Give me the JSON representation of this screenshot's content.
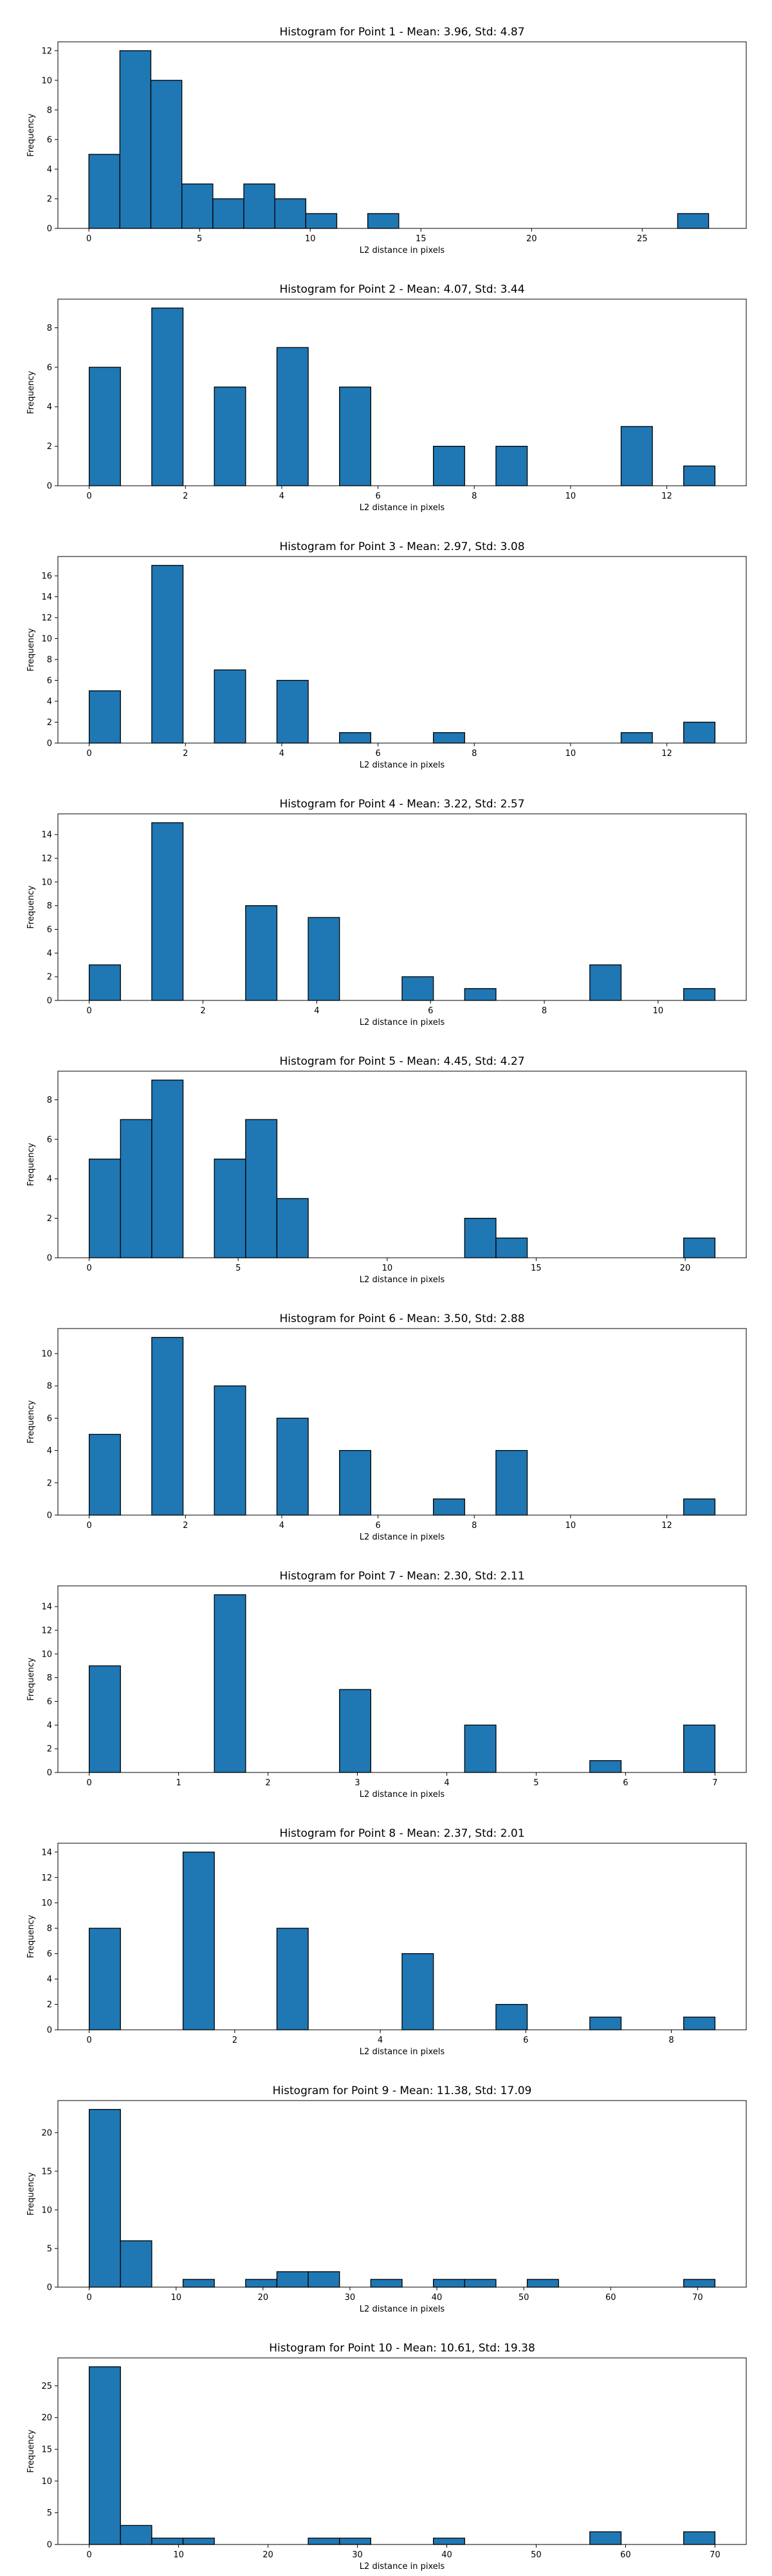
{
  "chart_data": [
    {
      "type": "bar",
      "title": "Histogram for Point 1 - Mean: 3.96, Std: 4.87",
      "xlabel": "L2 distance in pixels",
      "ylabel": "Frequency",
      "color": "#1f77b4",
      "xlim": [
        -1.4,
        29.7
      ],
      "ylim": [
        0,
        12.6
      ],
      "xticks": [
        0,
        5,
        10,
        15,
        20,
        25
      ],
      "yticks": [
        0,
        2,
        4,
        6,
        8,
        10,
        12
      ],
      "bins": [
        {
          "x0": 0,
          "x1": 1.4,
          "count": 5
        },
        {
          "x0": 1.4,
          "x1": 2.8,
          "count": 12
        },
        {
          "x0": 2.8,
          "x1": 4.2,
          "count": 10
        },
        {
          "x0": 4.2,
          "x1": 5.6,
          "count": 3
        },
        {
          "x0": 5.6,
          "x1": 7.0,
          "count": 2
        },
        {
          "x0": 7.0,
          "x1": 8.4,
          "count": 3
        },
        {
          "x0": 8.4,
          "x1": 9.8,
          "count": 2
        },
        {
          "x0": 9.8,
          "x1": 11.2,
          "count": 1
        },
        {
          "x0": 12.6,
          "x1": 14.0,
          "count": 1
        },
        {
          "x0": 26.6,
          "x1": 28.0,
          "count": 1
        }
      ]
    },
    {
      "type": "bar",
      "title": "Histogram for Point 2 - Mean: 4.07, Std: 3.44",
      "xlabel": "L2 distance in pixels",
      "ylabel": "Frequency",
      "color": "#1f77b4",
      "xlim": [
        -0.65,
        13.65
      ],
      "ylim": [
        0,
        9.45
      ],
      "xticks": [
        0,
        2,
        4,
        6,
        8,
        10,
        12
      ],
      "yticks": [
        0,
        2,
        4,
        6,
        8
      ],
      "bins": [
        {
          "x0": 0,
          "x1": 0.65,
          "count": 6
        },
        {
          "x0": 1.3,
          "x1": 1.95,
          "count": 9
        },
        {
          "x0": 2.6,
          "x1": 3.25,
          "count": 5
        },
        {
          "x0": 3.9,
          "x1": 4.55,
          "count": 7
        },
        {
          "x0": 5.2,
          "x1": 5.85,
          "count": 5
        },
        {
          "x0": 7.15,
          "x1": 7.8,
          "count": 2
        },
        {
          "x0": 8.45,
          "x1": 9.1,
          "count": 2
        },
        {
          "x0": 11.05,
          "x1": 11.7,
          "count": 3
        },
        {
          "x0": 12.35,
          "x1": 13.0,
          "count": 1
        }
      ]
    },
    {
      "type": "bar",
      "title": "Histogram for Point 3 - Mean: 2.97, Std: 3.08",
      "xlabel": "L2 distance in pixels",
      "ylabel": "Frequency",
      "color": "#1f77b4",
      "xlim": [
        -0.65,
        13.65
      ],
      "ylim": [
        0,
        17.85
      ],
      "xticks": [
        0,
        2,
        4,
        6,
        8,
        10,
        12
      ],
      "yticks": [
        0,
        2,
        4,
        6,
        8,
        10,
        12,
        14,
        16
      ],
      "bins": [
        {
          "x0": 0,
          "x1": 0.65,
          "count": 5
        },
        {
          "x0": 1.3,
          "x1": 1.95,
          "count": 17
        },
        {
          "x0": 2.6,
          "x1": 3.25,
          "count": 7
        },
        {
          "x0": 3.9,
          "x1": 4.55,
          "count": 6
        },
        {
          "x0": 5.2,
          "x1": 5.85,
          "count": 1
        },
        {
          "x0": 7.15,
          "x1": 7.8,
          "count": 1
        },
        {
          "x0": 11.05,
          "x1": 11.7,
          "count": 1
        },
        {
          "x0": 12.35,
          "x1": 13.0,
          "count": 2
        }
      ]
    },
    {
      "type": "bar",
      "title": "Histogram for Point 4 - Mean: 3.22, Std: 2.57",
      "xlabel": "L2 distance in pixels",
      "ylabel": "Frequency",
      "color": "#1f77b4",
      "xlim": [
        -0.55,
        11.55
      ],
      "ylim": [
        0,
        15.75
      ],
      "xticks": [
        0,
        2,
        4,
        6,
        8,
        10
      ],
      "yticks": [
        0,
        2,
        4,
        6,
        8,
        10,
        12,
        14
      ],
      "bins": [
        {
          "x0": 0,
          "x1": 0.55,
          "count": 3
        },
        {
          "x0": 1.1,
          "x1": 1.65,
          "count": 15
        },
        {
          "x0": 2.75,
          "x1": 3.3,
          "count": 8
        },
        {
          "x0": 3.85,
          "x1": 4.4,
          "count": 7
        },
        {
          "x0": 5.5,
          "x1": 6.05,
          "count": 2
        },
        {
          "x0": 6.6,
          "x1": 7.15,
          "count": 1
        },
        {
          "x0": 8.8,
          "x1": 9.35,
          "count": 3
        },
        {
          "x0": 10.45,
          "x1": 11.0,
          "count": 1
        }
      ]
    },
    {
      "type": "bar",
      "title": "Histogram for Point 5 - Mean: 4.45, Std: 4.27",
      "xlabel": "L2 distance in pixels",
      "ylabel": "Frequency",
      "color": "#1f77b4",
      "xlim": [
        -1.05,
        22.05
      ],
      "ylim": [
        0,
        9.45
      ],
      "xticks": [
        0,
        5,
        10,
        15,
        20
      ],
      "yticks": [
        0,
        2,
        4,
        6,
        8
      ],
      "bins": [
        {
          "x0": 0,
          "x1": 1.05,
          "count": 5
        },
        {
          "x0": 1.05,
          "x1": 2.1,
          "count": 7
        },
        {
          "x0": 2.1,
          "x1": 3.15,
          "count": 9
        },
        {
          "x0": 4.2,
          "x1": 5.25,
          "count": 5
        },
        {
          "x0": 5.25,
          "x1": 6.3,
          "count": 7
        },
        {
          "x0": 6.3,
          "x1": 7.35,
          "count": 3
        },
        {
          "x0": 12.6,
          "x1": 13.65,
          "count": 2
        },
        {
          "x0": 13.65,
          "x1": 14.7,
          "count": 1
        },
        {
          "x0": 19.95,
          "x1": 21.0,
          "count": 1
        }
      ]
    },
    {
      "type": "bar",
      "title": "Histogram for Point 6 - Mean: 3.50, Std: 2.88",
      "xlabel": "L2 distance in pixels",
      "ylabel": "Frequency",
      "color": "#1f77b4",
      "xlim": [
        -0.65,
        13.65
      ],
      "ylim": [
        0,
        11.55
      ],
      "xticks": [
        0,
        2,
        4,
        6,
        8,
        10,
        12
      ],
      "yticks": [
        0,
        2,
        4,
        6,
        8,
        10
      ],
      "bins": [
        {
          "x0": 0,
          "x1": 0.65,
          "count": 5
        },
        {
          "x0": 1.3,
          "x1": 1.95,
          "count": 11
        },
        {
          "x0": 2.6,
          "x1": 3.25,
          "count": 8
        },
        {
          "x0": 3.9,
          "x1": 4.55,
          "count": 6
        },
        {
          "x0": 5.2,
          "x1": 5.85,
          "count": 4
        },
        {
          "x0": 7.15,
          "x1": 7.8,
          "count": 1
        },
        {
          "x0": 8.45,
          "x1": 9.1,
          "count": 4
        },
        {
          "x0": 12.35,
          "x1": 13.0,
          "count": 1
        }
      ]
    },
    {
      "type": "bar",
      "title": "Histogram for Point 7 - Mean: 2.30, Std: 2.11",
      "xlabel": "L2 distance in pixels",
      "ylabel": "Frequency",
      "color": "#1f77b4",
      "xlim": [
        -0.35,
        7.35
      ],
      "ylim": [
        0,
        15.75
      ],
      "xticks": [
        0,
        1,
        2,
        3,
        4,
        5,
        6,
        7
      ],
      "yticks": [
        0,
        2,
        4,
        6,
        8,
        10,
        12,
        14
      ],
      "bins": [
        {
          "x0": 0,
          "x1": 0.35,
          "count": 9
        },
        {
          "x0": 1.4,
          "x1": 1.75,
          "count": 15
        },
        {
          "x0": 2.8,
          "x1": 3.15,
          "count": 7
        },
        {
          "x0": 4.2,
          "x1": 4.55,
          "count": 4
        },
        {
          "x0": 5.6,
          "x1": 5.95,
          "count": 1
        },
        {
          "x0": 6.65,
          "x1": 7.0,
          "count": 4
        }
      ]
    },
    {
      "type": "bar",
      "title": "Histogram for Point 8 - Mean: 2.37, Std: 2.01",
      "xlabel": "L2 distance in pixels",
      "ylabel": "Frequency",
      "color": "#1f77b4",
      "xlim": [
        -0.43,
        9.03
      ],
      "ylim": [
        0,
        14.7
      ],
      "xticks": [
        0,
        2,
        4,
        6,
        8
      ],
      "yticks": [
        0,
        2,
        4,
        6,
        8,
        10,
        12,
        14
      ],
      "bins": [
        {
          "x0": 0,
          "x1": 0.43,
          "count": 8
        },
        {
          "x0": 1.29,
          "x1": 1.72,
          "count": 14
        },
        {
          "x0": 2.58,
          "x1": 3.01,
          "count": 8
        },
        {
          "x0": 4.3,
          "x1": 4.73,
          "count": 6
        },
        {
          "x0": 5.59,
          "x1": 6.02,
          "count": 2
        },
        {
          "x0": 6.88,
          "x1": 7.31,
          "count": 1
        },
        {
          "x0": 8.17,
          "x1": 8.6,
          "count": 1
        }
      ]
    },
    {
      "type": "bar",
      "title": "Histogram for Point 9 - Mean: 11.38, Std: 17.09",
      "xlabel": "L2 distance in pixels",
      "ylabel": "Frequency",
      "color": "#1f77b4",
      "xlim": [
        -3.6,
        75.6
      ],
      "ylim": [
        0,
        24.15
      ],
      "xticks": [
        0,
        10,
        20,
        30,
        40,
        50,
        60,
        70
      ],
      "yticks": [
        0,
        5,
        10,
        15,
        20
      ],
      "bins": [
        {
          "x0": 0,
          "x1": 3.6,
          "count": 23
        },
        {
          "x0": 3.6,
          "x1": 7.2,
          "count": 6
        },
        {
          "x0": 10.8,
          "x1": 14.4,
          "count": 1
        },
        {
          "x0": 18.0,
          "x1": 21.6,
          "count": 1
        },
        {
          "x0": 21.6,
          "x1": 25.2,
          "count": 2
        },
        {
          "x0": 25.2,
          "x1": 28.8,
          "count": 2
        },
        {
          "x0": 32.4,
          "x1": 36.0,
          "count": 1
        },
        {
          "x0": 39.6,
          "x1": 43.2,
          "count": 1
        },
        {
          "x0": 43.2,
          "x1": 46.8,
          "count": 1
        },
        {
          "x0": 50.4,
          "x1": 54.0,
          "count": 1
        },
        {
          "x0": 68.4,
          "x1": 72.0,
          "count": 1
        }
      ]
    },
    {
      "type": "bar",
      "title": "Histogram for Point 10 - Mean: 10.61, Std: 19.38",
      "xlabel": "L2 distance in pixels",
      "ylabel": "Frequency",
      "color": "#1f77b4",
      "xlim": [
        -3.5,
        73.5
      ],
      "ylim": [
        0,
        29.4
      ],
      "xticks": [
        0,
        10,
        20,
        30,
        40,
        50,
        60,
        70
      ],
      "yticks": [
        0,
        5,
        10,
        15,
        20,
        25
      ],
      "bins": [
        {
          "x0": 0,
          "x1": 3.5,
          "count": 28
        },
        {
          "x0": 3.5,
          "x1": 7.0,
          "count": 3
        },
        {
          "x0": 7.0,
          "x1": 10.5,
          "count": 1
        },
        {
          "x0": 10.5,
          "x1": 14.0,
          "count": 1
        },
        {
          "x0": 24.5,
          "x1": 28.0,
          "count": 1
        },
        {
          "x0": 28.0,
          "x1": 31.5,
          "count": 1
        },
        {
          "x0": 38.5,
          "x1": 42.0,
          "count": 1
        },
        {
          "x0": 56.0,
          "x1": 59.5,
          "count": 2
        },
        {
          "x0": 66.5,
          "x1": 70.0,
          "count": 2
        }
      ]
    }
  ]
}
